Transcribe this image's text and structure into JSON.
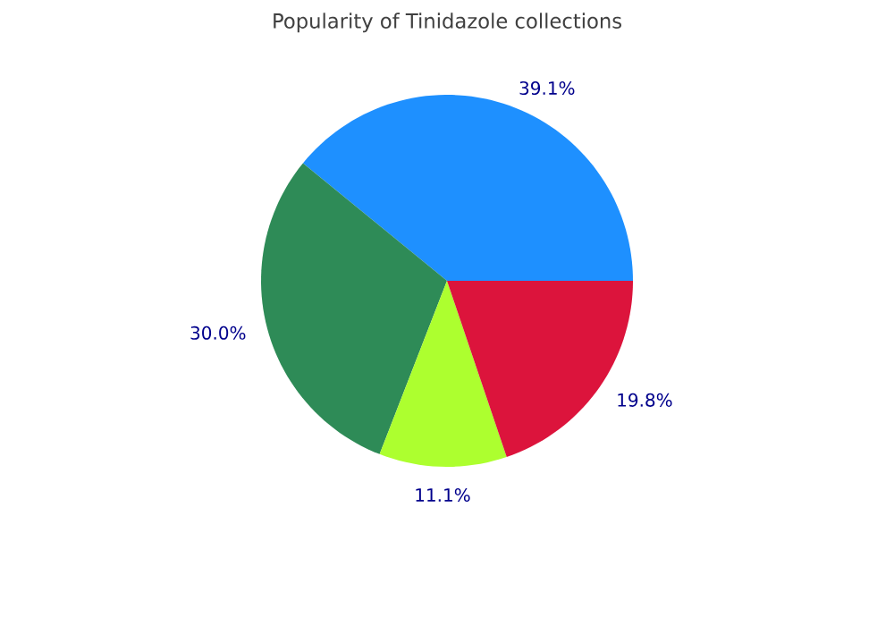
{
  "chart_data": {
    "type": "pie",
    "title": "Popularity of Tinidazole collections",
    "categories": [
      null,
      null,
      null,
      null
    ],
    "values": [
      39.1,
      30.0,
      11.1,
      19.8
    ],
    "colors": [
      "#1e90ff",
      "#2e8b57",
      "#adff2f",
      "#dc143c"
    ],
    "value_labels": [
      "39.1%",
      "30.0%",
      "11.1%",
      "19.8%"
    ]
  }
}
